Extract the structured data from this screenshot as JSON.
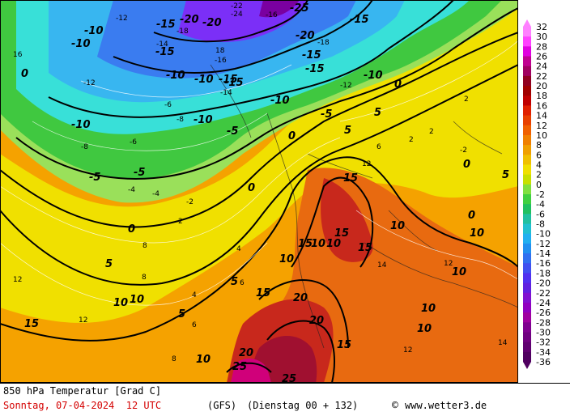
{
  "map": {
    "region": "Europe",
    "parameter": "850 hPa Temperature",
    "colors": {
      "deep_purple": "#7a00a0",
      "violet": "#7b2ff7",
      "blue": "#3a7cf0",
      "light_blue": "#38b6f0",
      "cyan": "#38e0d8",
      "green": "#40c840",
      "light_green": "#9ae05a",
      "yellow": "#f0e000",
      "orange": "#f5a200",
      "dark_orange": "#e86a10",
      "red": "#c8281c",
      "dark_red": "#a01030",
      "magenta": "#d0007a"
    },
    "bold_labels": [
      "-25",
      "-20",
      "-20",
      "-15",
      "-15",
      "-15",
      "-15",
      "-15",
      "-10",
      "-10",
      "-10",
      "-10",
      "-10",
      "-10",
      "-10",
      "-10",
      "-15",
      "-15",
      "-20",
      "-5",
      "-5",
      "-5",
      "-5",
      "0",
      "0",
      "0",
      "0",
      "0",
      "0",
      "0",
      "5",
      "5",
      "5",
      "5",
      "5",
      "5",
      "10",
      "10",
      "10",
      "10",
      "10",
      "10",
      "10",
      "10",
      "10",
      "10",
      "10",
      "15",
      "15",
      "15",
      "15",
      "15",
      "15",
      "15",
      "20",
      "20",
      "20",
      "25",
      "25"
    ],
    "small_labels": [
      "-22",
      "-24",
      "-16",
      "-18",
      "-12",
      "-14",
      "-12",
      "-14",
      "-16",
      "-18",
      "-12",
      "-8",
      "-6",
      "-8",
      "-6",
      "-4",
      "-4",
      "-2",
      "2",
      "4",
      "6",
      "8",
      "12",
      "12",
      "14",
      "16",
      "18",
      "12",
      "8",
      "6",
      "4",
      "2",
      "2",
      "12",
      "14",
      "12",
      "8",
      "6",
      "-2",
      "2"
    ]
  },
  "legend": {
    "ticks": [
      "32",
      "30",
      "28",
      "26",
      "24",
      "22",
      "20",
      "18",
      "16",
      "14",
      "12",
      "10",
      "8",
      "6",
      "4",
      "2",
      "0",
      "-2",
      "-4",
      "-6",
      "-8",
      "-10",
      "-12",
      "-14",
      "-16",
      "-18",
      "-20",
      "-22",
      "-24",
      "-26",
      "-28",
      "-30",
      "-32",
      "-34",
      "-36"
    ],
    "colors": [
      "#ff80ff",
      "#ff40ff",
      "#e000e0",
      "#c00090",
      "#a00060",
      "#900020",
      "#a00000",
      "#c00000",
      "#e02000",
      "#e84000",
      "#f06000",
      "#f08000",
      "#f0a000",
      "#f0c000",
      "#f0e000",
      "#c8e000",
      "#80e040",
      "#40d040",
      "#20c060",
      "#20c0a0",
      "#20c0d0",
      "#20b0f0",
      "#2090f0",
      "#3070f0",
      "#4050f0",
      "#5030f0",
      "#6020e0",
      "#8010d0",
      "#9000c0",
      "#a000a0",
      "#800090",
      "#700080",
      "#600070",
      "#500060"
    ]
  },
  "footer": {
    "line1": "850 hPa Temperatur [Grad C]",
    "date_line": "Sonntag, 07-04-2024  12 UTC",
    "model": "(GFS)",
    "run": "(Dienstag 00 + 132)",
    "copyright_symbol": "©",
    "site": "www.wetter3.de"
  }
}
